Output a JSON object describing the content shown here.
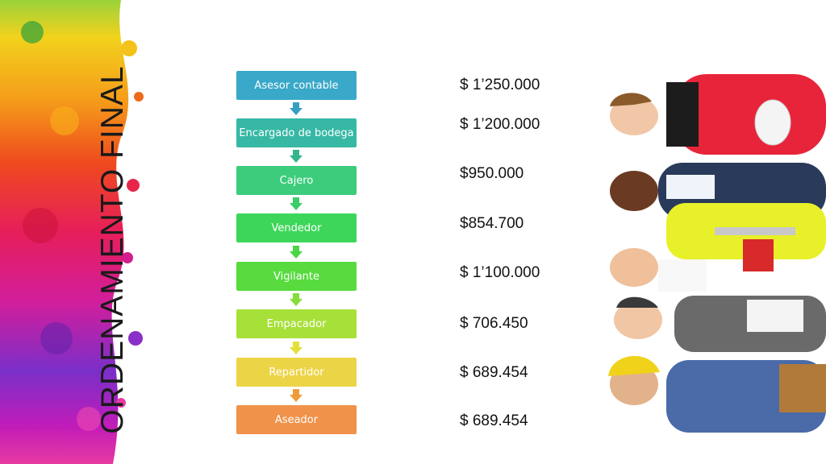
{
  "slide": {
    "title": "ORDENAMIENTO FINAL"
  },
  "steps": [
    {
      "label": "Asesor contable",
      "color": "#3aa8c8"
    },
    {
      "label": "Encargado de bodega",
      "color": "#36b8a5"
    },
    {
      "label": "Cajero",
      "color": "#3dcc7c"
    },
    {
      "label": "Vendedor",
      "color": "#3ed65a"
    },
    {
      "label": "Vigilante",
      "color": "#57db3e"
    },
    {
      "label": "Empacador",
      "color": "#a8e03a"
    },
    {
      "label": "Repartidor",
      "color": "#ecd447"
    },
    {
      "label": "Aseador",
      "color": "#f0924a"
    }
  ],
  "arrow_colors": [
    "#36a0c0",
    "#34b48c",
    "#3bcd6a",
    "#49d546",
    "#86dc3a",
    "#e3e03c",
    "#f09a3c"
  ],
  "prices": [
    "$ 1’250.000",
    "$ 1’200.000",
    "$950.000",
    "$854.700",
    "$ 1’100.000",
    " $ 706.450",
    "$ 689.454",
    "$ 689.454"
  ],
  "decor": {
    "paint_splash": "colorful-paint-splash",
    "workers_photo": "group-of-workers"
  }
}
